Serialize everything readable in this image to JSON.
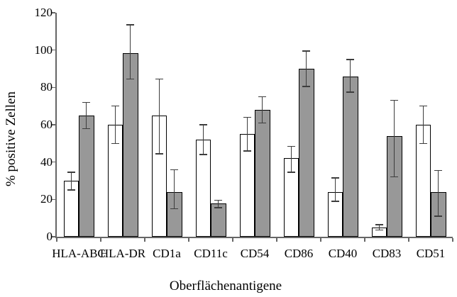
{
  "chart_data": {
    "type": "bar",
    "title": "",
    "xlabel": "Oberflächenantigene",
    "ylabel": "% positive Zellen",
    "ylim": [
      0,
      120
    ],
    "y_ticks": [
      0,
      20,
      40,
      60,
      80,
      100,
      120
    ],
    "grid": false,
    "legend": "none",
    "error_bars": true,
    "categories": [
      "HLA-ABC",
      "HLA-DR",
      "CD1a",
      "CD11c",
      "CD54",
      "CD86",
      "CD40",
      "CD83",
      "CD51"
    ],
    "series": [
      {
        "name": "white",
        "fill": "#ffffff",
        "outline": "#000000",
        "values": [
          30,
          60,
          65,
          52,
          55,
          42,
          24,
          5,
          60
        ],
        "err_low": [
          25,
          50,
          44.5,
          44,
          46,
          34.5,
          19,
          3.5,
          50
        ],
        "err_high": [
          34.5,
          70,
          84.5,
          60,
          64,
          48.5,
          31.5,
          6.5,
          70
        ]
      },
      {
        "name": "gray",
        "fill": "#989898",
        "outline": "#000000",
        "values": [
          65,
          98.5,
          24,
          18,
          68,
          90,
          86,
          54,
          24
        ],
        "err_low": [
          58,
          84.5,
          15,
          15.5,
          61,
          80.5,
          77.5,
          32,
          11
        ],
        "err_high": [
          72,
          113.5,
          36,
          19.5,
          75,
          99.5,
          95,
          73,
          35.5
        ]
      }
    ]
  }
}
